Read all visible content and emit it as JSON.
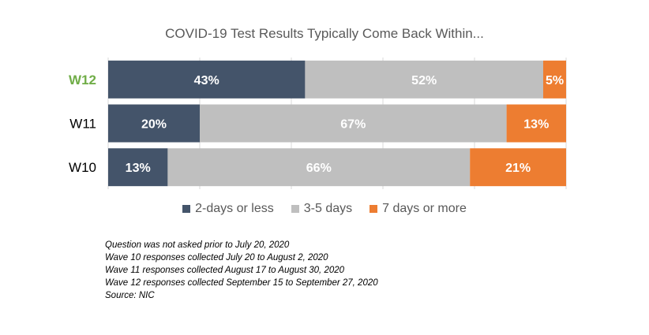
{
  "chart_data": {
    "type": "bar",
    "orientation": "horizontal",
    "stacked": true,
    "percent_scale": true,
    "title": "COVID-19 Test Results Typically Come Back Within...",
    "categories": [
      "W12",
      "W11",
      "W10"
    ],
    "highlight_category": "W12",
    "series": [
      {
        "name": "2-days or less",
        "color": "#44546A",
        "values": [
          43,
          20,
          13
        ],
        "labels": [
          "43%",
          "20%",
          "13%"
        ]
      },
      {
        "name": "3-5 days",
        "color": "#BFBFBF",
        "values": [
          52,
          67,
          66
        ],
        "labels": [
          "52%",
          "67%",
          "66%"
        ]
      },
      {
        "name": "7 days or more",
        "color": "#ED7D31",
        "values": [
          5,
          13,
          21
        ],
        "labels": [
          "5%",
          "13%",
          "21%"
        ]
      }
    ],
    "xlim": [
      0,
      100
    ],
    "grid": true,
    "legend": "bottom",
    "colors": {
      "highlight": "#70AD47",
      "category": "#000000",
      "label": "#FFFFFF"
    }
  },
  "footnotes": [
    "Question was not asked prior to July 20, 2020",
    "Wave 10 responses collected July 20 to August 2, 2020",
    "Wave 11 responses collected August 17 to August 30, 2020",
    "Wave 12 responses collected September 15 to September 27, 2020",
    "Source: NIC"
  ]
}
